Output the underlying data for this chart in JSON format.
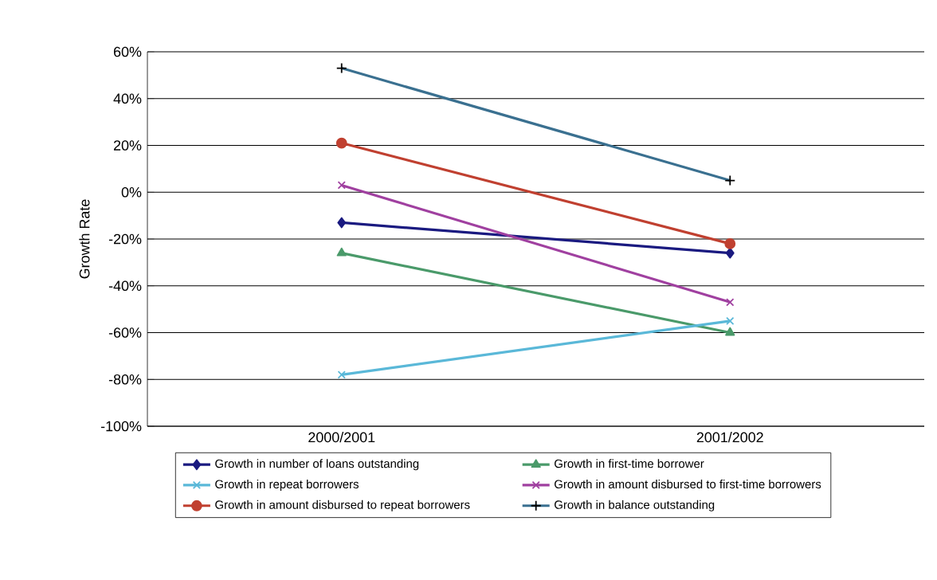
{
  "chart_data": {
    "type": "line",
    "ylabel": "Growth Rate",
    "categories": [
      "2000/2001",
      "2001/2002"
    ],
    "ylim": [
      -100,
      60
    ],
    "yticks": [
      {
        "value": -100,
        "label": "-100%"
      },
      {
        "value": -80,
        "label": "-80%"
      },
      {
        "value": -60,
        "label": "-60%"
      },
      {
        "value": -40,
        "label": "-40%"
      },
      {
        "value": -20,
        "label": "-20%"
      },
      {
        "value": 0,
        "label": "0%"
      },
      {
        "value": 20,
        "label": "20%"
      },
      {
        "value": 40,
        "label": "40%"
      },
      {
        "value": 60,
        "label": "60%"
      }
    ],
    "grid": "y",
    "legend": "bottom",
    "line_style": "solid",
    "series": [
      {
        "name": "Growth in number of loans outstanding",
        "color": "#1a1a80",
        "marker": "diamond",
        "values": [
          -13,
          -26
        ]
      },
      {
        "name": "Growth in first-time borrower",
        "color": "#4a9a6a",
        "marker": "triangle",
        "values": [
          -26,
          -60
        ]
      },
      {
        "name": "Growth in repeat borrowers",
        "color": "#5ab8d8",
        "marker": "cross",
        "values": [
          -78,
          -55
        ]
      },
      {
        "name": "Growth in amount disbursed to first-time borrowers",
        "color": "#a040a0",
        "marker": "cross",
        "values": [
          3,
          -47
        ]
      },
      {
        "name": "Growth in amount disbursed to repeat borrowers",
        "color": "#c04030",
        "marker": "circle",
        "values": [
          21,
          -22
        ]
      },
      {
        "name": "Growth in balance outstanding",
        "color": "#3a7090",
        "marker": "plus",
        "values": [
          53,
          5
        ]
      }
    ]
  }
}
